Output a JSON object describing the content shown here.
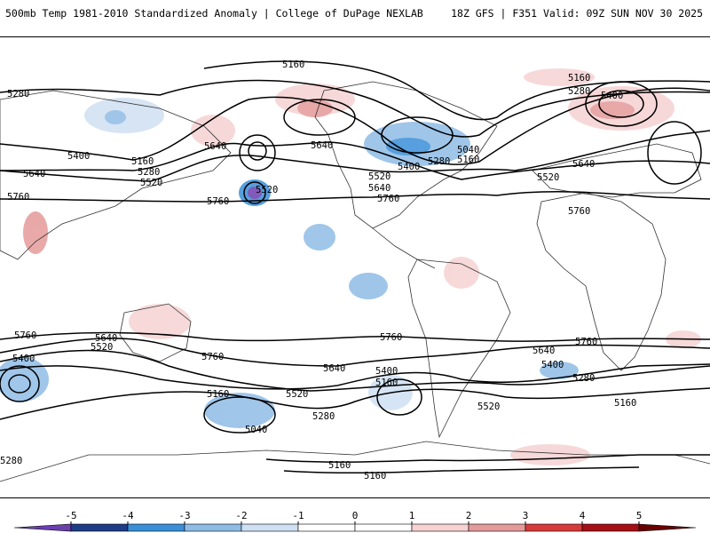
{
  "header": {
    "title": "500mb Temp 1981-2010 Standardized Anomaly | College of DuPage NEXLAB",
    "run_info": "18Z GFS | F351 Valid: 09Z SUN NOV 30 2025"
  },
  "map": {
    "contour_labels": [
      "5160",
      "5280",
      "5400",
      "5160",
      "5280",
      "5520",
      "5640",
      "5760",
      "5640",
      "5520",
      "5760",
      "5640",
      "5040",
      "5160",
      "5280",
      "5400",
      "5520",
      "5640",
      "5760",
      "5160",
      "5280",
      "5400",
      "5520",
      "5640",
      "5760",
      "5760",
      "5640",
      "5520",
      "5760",
      "5400",
      "5160",
      "5040",
      "5760",
      "5640",
      "5400",
      "5520",
      "5280",
      "5160",
      "5520",
      "5640",
      "5400",
      "5280",
      "5760",
      "5160",
      "5280",
      "5160",
      "5160"
    ]
  },
  "colorbar": {
    "ticks": [
      "-5",
      "-4",
      "-3",
      "-2",
      "-1",
      "0",
      "1",
      "2",
      "3",
      "4",
      "5"
    ],
    "colors": [
      "#6a3fb0",
      "#1f3c88",
      "#3a8fd9",
      "#8fbce6",
      "#cfe0f3",
      "#ffffff",
      "#ffffff",
      "#f6d2d2",
      "#e59a9a",
      "#d63a3a",
      "#a50f15",
      "#6b0000",
      "#f2b700"
    ]
  }
}
